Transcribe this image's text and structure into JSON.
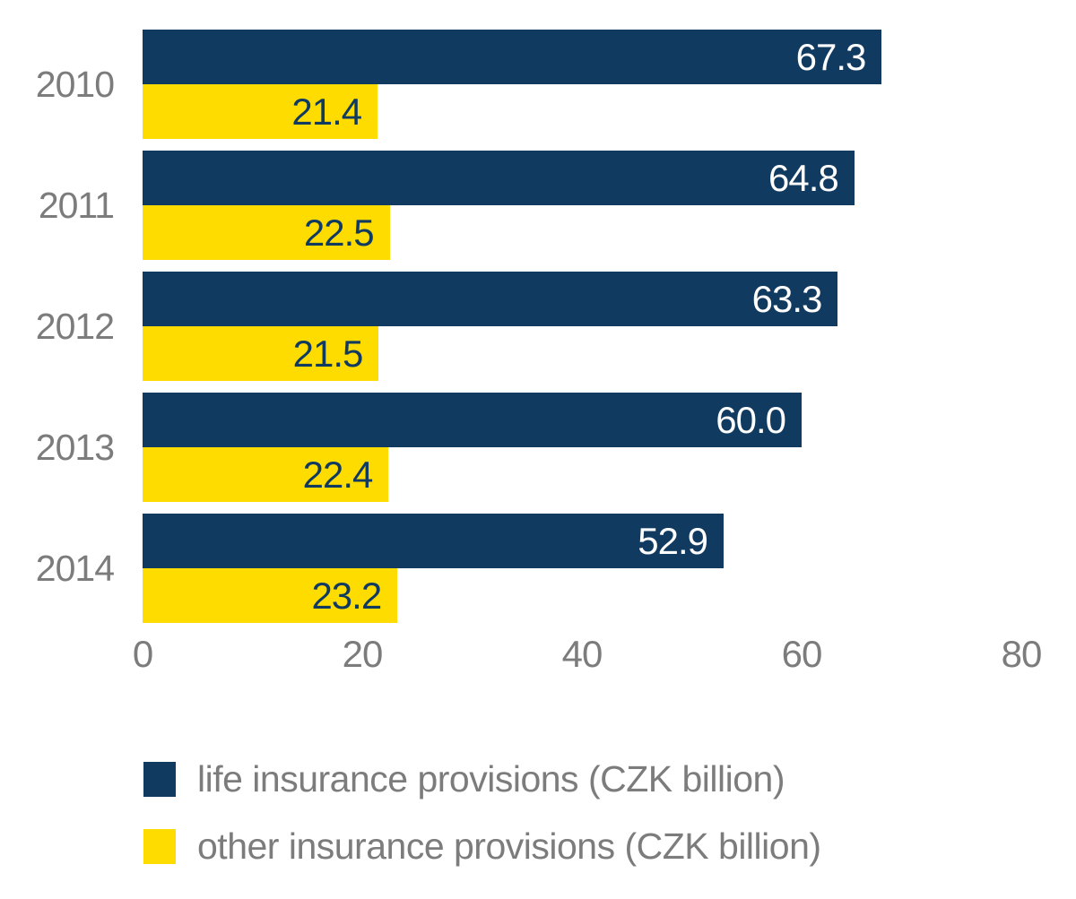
{
  "chart_data": {
    "type": "bar",
    "orientation": "horizontal",
    "title": "",
    "xlabel": "",
    "ylabel": "",
    "categories": [
      "2010",
      "2011",
      "2012",
      "2013",
      "2014"
    ],
    "series": [
      {
        "name": "life insurance provisions (CZK billion)",
        "color": "#113a60",
        "values": [
          67.3,
          64.8,
          63.3,
          60.0,
          52.9
        ],
        "labels": [
          "67.3",
          "64.8",
          "63.3",
          "60.0",
          "52.9"
        ]
      },
      {
        "name": "other insurance provisions (CZK billion)",
        "color": "#ffdc00",
        "values": [
          21.4,
          22.5,
          21.5,
          22.4,
          23.2
        ],
        "labels": [
          "21.4",
          "22.5",
          "21.5",
          "22.4",
          "23.2"
        ]
      }
    ],
    "xlim": [
      0,
      80
    ],
    "xticks": [
      "0",
      "20",
      "40",
      "60",
      "80"
    ],
    "grid": false,
    "legend_position": "bottom-left",
    "value_label_position": "inside-end",
    "colors": {
      "background": "#ffffff",
      "axis_text": "#7c7c7c",
      "value_text_on_navy": "#ffffff",
      "value_text_on_yellow": "#113a60"
    }
  }
}
